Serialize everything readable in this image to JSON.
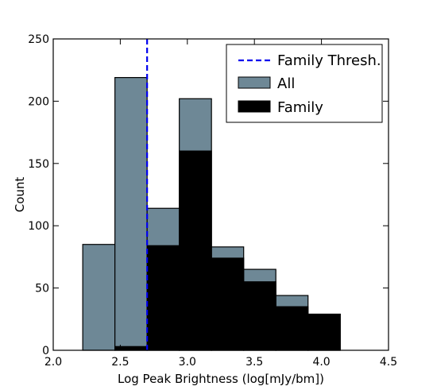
{
  "chart_data": {
    "type": "bar",
    "title": "",
    "xlabel": "Log Peak Brightness (log[mJy/bm])",
    "ylabel": "Count",
    "xlim": [
      2.0,
      4.5
    ],
    "ylim": [
      0,
      250
    ],
    "x_ticks": [
      "2.0",
      "2.5",
      "3.0",
      "3.5",
      "4.0",
      "4.5"
    ],
    "y_ticks": [
      "0",
      "50",
      "100",
      "150",
      "200",
      "250"
    ],
    "grid": false,
    "legend_position": "top-right",
    "bin_edges": [
      2.22,
      2.46,
      2.7,
      2.94,
      3.18,
      3.42,
      3.66,
      3.9,
      4.14
    ],
    "series": [
      {
        "name": "All",
        "color": "#6e8896",
        "values": [
          85,
          219,
          114,
          202,
          83,
          65,
          44,
          29
        ]
      },
      {
        "name": "Family",
        "color": "#000000",
        "values": [
          0,
          3,
          84,
          160,
          74,
          55,
          35,
          29
        ]
      }
    ],
    "threshold": {
      "name": "Family Thresh.",
      "x": 2.7,
      "color": "#0000ee"
    }
  }
}
